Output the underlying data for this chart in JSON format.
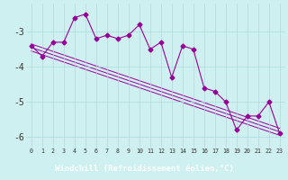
{
  "x": [
    0,
    1,
    2,
    3,
    4,
    5,
    6,
    7,
    8,
    9,
    10,
    11,
    12,
    13,
    14,
    15,
    16,
    17,
    18,
    19,
    20,
    21,
    22,
    23
  ],
  "line1": [
    -3.4,
    -3.7,
    -3.3,
    -3.3,
    -2.6,
    -2.5,
    -3.2,
    -3.1,
    -3.2,
    -3.1,
    -2.8,
    -3.5,
    -3.3,
    -4.3,
    -3.4,
    -3.5,
    -4.6,
    -4.7,
    -5.0,
    -5.8,
    -5.4,
    -5.4,
    -5.0,
    -5.9
  ],
  "straight_lines": [
    [
      [
        0,
        23
      ],
      [
        -3.35,
        -5.75
      ]
    ],
    [
      [
        0,
        23
      ],
      [
        -3.45,
        -5.85
      ]
    ],
    [
      [
        0,
        23
      ],
      [
        -3.55,
        -5.95
      ]
    ]
  ],
  "ylim": [
    -6.3,
    -2.2
  ],
  "xlim": [
    -0.5,
    23.5
  ],
  "yticks": [
    -6,
    -5,
    -4,
    -3
  ],
  "xticks": [
    0,
    1,
    2,
    3,
    4,
    5,
    6,
    7,
    8,
    9,
    10,
    11,
    12,
    13,
    14,
    15,
    16,
    17,
    18,
    19,
    20,
    21,
    22,
    23
  ],
  "xlabel": "Windchill (Refroidissement éolien,°C)",
  "bg_color": "#cef0f0",
  "line_color": "#990099",
  "grid_color": "#aadddd",
  "xlabel_bg": "#660066",
  "xlabel_fg": "#ffffff"
}
